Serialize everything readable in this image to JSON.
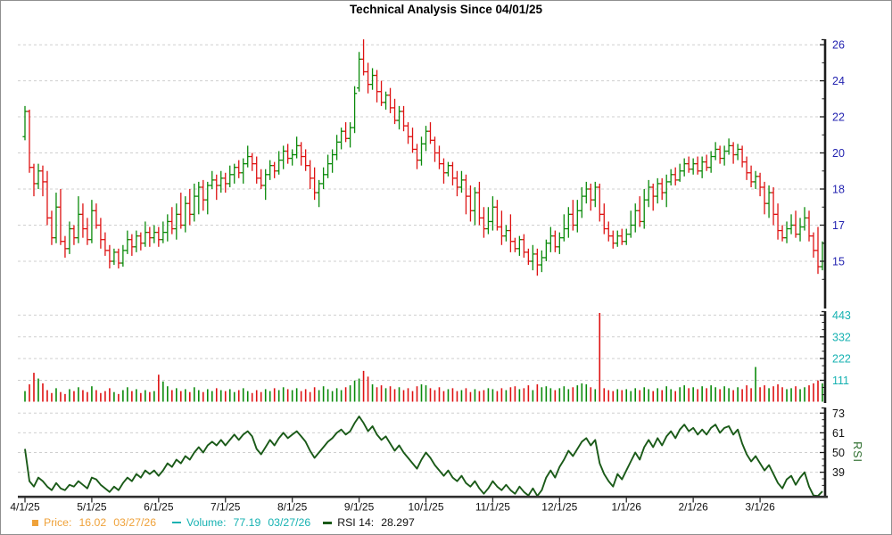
{
  "title": "Technical Analysis Since 04/01/25",
  "legend": {
    "price_label": "Price:",
    "price_value": "16.02",
    "price_date": "03/27/26",
    "volume_label": "Volume:",
    "volume_value": "77.19",
    "volume_date": "03/27/26",
    "rsi_label": "RSI 14:",
    "rsi_value": "28.297"
  },
  "colors": {
    "up_bar": "#0a8a0a",
    "down_bar": "#de1212",
    "grid": "#cfcfcf",
    "axis": "#1c1c1c",
    "x_axis": "#2f2f2f",
    "price_label": "#2323b0",
    "volume_label": "#17b2b2",
    "rsi_line": "#1a5a18",
    "rsi_axis_title": "#2f6f2f",
    "legend_price": "#efa23a",
    "legend_volume": "#17b2b2",
    "legend_rsi_text": "#111111",
    "tick_label": "#111111"
  },
  "chart_data": {
    "type": "bar",
    "subtype": "daily-ohlc-bars-with-volume-and-rsi-panels",
    "title": "Technical Analysis Since 04/01/25",
    "x_tick_labels": [
      "4/1/25",
      "5/1/25",
      "6/1/25",
      "7/1/25",
      "8/1/25",
      "9/1/25",
      "10/1/25",
      "11/1/25",
      "12/1/25",
      "1/1/26",
      "2/1/26",
      "3/1/26"
    ],
    "bars_per_month": 15,
    "price_tick_labels": [
      26,
      24,
      22,
      20,
      18,
      17,
      15
    ],
    "volume_tick_labels": [
      443,
      332,
      222,
      111
    ],
    "rsi_tick_labels": [
      73,
      61,
      50,
      39
    ],
    "rsi_axis_title": "RSI",
    "legend_last": {
      "price": 16.02,
      "price_date": "03/27/26",
      "volume": 77.19,
      "volume_date": "03/27/26",
      "rsi14": 28.297
    },
    "open": [
      20.9,
      22.3,
      19.2,
      18.3,
      19.0,
      18.4,
      17.2,
      16.3,
      17.5,
      16.1,
      15.7,
      16.8,
      16.3,
      17.3,
      16.8,
      16.2,
      17.4,
      17.0,
      16.2,
      15.6,
      15.0,
      15.5,
      14.9,
      15.6,
      16.2,
      15.8,
      16.4,
      16.0,
      16.6,
      16.3,
      16.6,
      16.2,
      16.6,
      17.1,
      16.8,
      17.3,
      17.0,
      17.6,
      17.3,
      17.8,
      18.1,
      17.7,
      18.2,
      18.5,
      18.2,
      18.6,
      18.3,
      18.8,
      19.2,
      18.9,
      19.4,
      19.8,
      19.4,
      18.6,
      18.2,
      18.8,
      19.3,
      19.0,
      19.6,
      20.1,
      19.7,
      19.9,
      20.4,
      19.8,
      19.3,
      18.6,
      17.9,
      18.3,
      18.8,
      19.4,
      19.9,
      20.6,
      21.2,
      20.8,
      21.4,
      23.6,
      25.2,
      24.5,
      23.8,
      24.3,
      23.4,
      22.8,
      23.2,
      22.5,
      21.8,
      22.3,
      21.5,
      20.9,
      20.2,
      19.6,
      20.5,
      21.2,
      20.7,
      20.0,
      19.4,
      18.9,
      19.3,
      18.6,
      18.1,
      18.5,
      17.8,
      17.4,
      17.9,
      17.2,
      16.8,
      17.1,
      17.5,
      16.9,
      16.4,
      16.7,
      16.1,
      15.7,
      16.2,
      15.5,
      15.0,
      15.4,
      14.8,
      15.2,
      16.0,
      16.4,
      15.8,
      16.3,
      16.8,
      17.3,
      17.0,
      17.4,
      17.8,
      18.0,
      17.7,
      18.1,
      17.3,
      16.8,
      16.4,
      16.0,
      16.4,
      16.1,
      16.5,
      17.0,
      17.4,
      17.1,
      17.7,
      18.1,
      17.8,
      18.3,
      17.9,
      18.4,
      18.8,
      18.5,
      19.0,
      19.4,
      19.1,
      19.4,
      19.0,
      19.5,
      19.2,
      19.8,
      20.2,
      19.7,
      20.1,
      20.4,
      19.9,
      20.2,
      19.5,
      18.9,
      18.4,
      18.7,
      18.1,
      17.6,
      17.9,
      17.3,
      16.7,
      16.3,
      16.8,
      17.0,
      16.5,
      16.9,
      17.2,
      16.4,
      15.6,
      14.7
    ],
    "high": [
      22.6,
      22.4,
      19.4,
      19.4,
      19.3,
      19.0,
      17.4,
      17.9,
      18.0,
      16.4,
      17.1,
      17.0,
      17.8,
      17.6,
      17.2,
      17.7,
      17.6,
      17.2,
      16.6,
      15.9,
      15.7,
      15.7,
      15.9,
      16.7,
      16.5,
      16.7,
      16.6,
      17.1,
      16.9,
      17.0,
      16.9,
      17.1,
      17.3,
      17.5,
      17.6,
      17.9,
      17.8,
      18.0,
      18.3,
      18.4,
      18.5,
      18.4,
      19.0,
      18.8,
      19.0,
      18.9,
      19.3,
      19.4,
      19.6,
      19.7,
      20.4,
      20.0,
      19.8,
      19.1,
      19.1,
      19.6,
      19.5,
      20.1,
      20.4,
      20.5,
      20.2,
      20.9,
      20.6,
      20.2,
      19.6,
      19.2,
      18.5,
      19.2,
      19.9,
      20.2,
      21.0,
      21.4,
      21.7,
      21.7,
      23.7,
      25.6,
      26.3,
      25.0,
      24.7,
      24.6,
      24.0,
      23.4,
      23.6,
      23.0,
      22.6,
      22.6,
      21.7,
      21.4,
      20.5,
      20.9,
      21.5,
      21.7,
      20.9,
      20.4,
      19.7,
      19.5,
      19.5,
      19.0,
      19.0,
      18.8,
      18.2,
      18.1,
      18.4,
      17.5,
      17.5,
      17.8,
      17.7,
      17.4,
      17.0,
      17.3,
      16.3,
      16.4,
      16.5,
      15.7,
      15.9,
      15.7,
      15.6,
      16.2,
      16.9,
      16.7,
      16.6,
      17.3,
      17.5,
      17.7,
      17.7,
      18.1,
      18.4,
      18.3,
      18.4,
      18.3,
      17.6,
      17.1,
      16.7,
      16.7,
      16.8,
      16.8,
      17.4,
      17.6,
      17.8,
      18.0,
      18.5,
      18.3,
      18.6,
      18.6,
      18.8,
      19.1,
      19.2,
      19.4,
      19.7,
      19.8,
      19.7,
      19.8,
      19.8,
      19.9,
      20.1,
      20.6,
      20.4,
      20.4,
      20.8,
      20.6,
      20.5,
      20.4,
      19.8,
      19.3,
      19.0,
      18.9,
      18.4,
      18.2,
      18.1,
      17.6,
      17.0,
      17.1,
      17.3,
      17.4,
      17.2,
      17.5,
      17.4,
      16.6,
      16.9,
      16.1
    ],
    "low": [
      20.7,
      18.9,
      17.8,
      18.0,
      17.8,
      17.0,
      15.9,
      16.0,
      15.9,
      15.2,
      15.4,
      15.9,
      16.0,
      16.3,
      15.9,
      16.0,
      16.8,
      15.7,
      15.3,
      14.6,
      14.8,
      14.6,
      14.7,
      15.4,
      15.3,
      15.5,
      15.6,
      15.8,
      15.8,
      16.0,
      15.8,
      16.0,
      16.1,
      16.5,
      16.2,
      16.8,
      16.6,
      17.0,
      17.1,
      17.3,
      17.4,
      17.3,
      18.0,
      17.7,
      17.9,
      17.9,
      18.1,
      18.3,
      18.6,
      18.3,
      19.2,
      19.0,
      18.3,
      18.0,
      17.7,
      18.5,
      18.6,
      18.8,
      19.1,
      19.4,
      19.3,
      19.7,
      19.3,
      19.0,
      18.0,
      17.7,
      17.5,
      18.0,
      18.6,
      18.9,
      19.6,
      20.2,
      20.6,
      20.3,
      21.1,
      23.4,
      24.3,
      23.3,
      23.5,
      22.8,
      22.6,
      22.4,
      22.2,
      21.6,
      21.3,
      21.2,
      20.5,
      20.0,
      19.1,
      19.3,
      20.1,
      20.5,
      19.5,
      19.1,
      18.3,
      18.7,
      18.2,
      17.8,
      17.9,
      17.3,
      17.1,
      17.0,
      17.0,
      16.3,
      16.5,
      16.7,
      16.7,
      15.9,
      16.1,
      15.5,
      15.5,
      15.3,
      15.2,
      14.8,
      14.5,
      14.2,
      14.4,
      15.0,
      15.5,
      15.5,
      15.4,
      16.1,
      16.3,
      16.7,
      16.6,
      17.2,
      17.6,
      17.4,
      17.5,
      17.1,
      16.5,
      16.1,
      15.7,
      15.8,
      15.9,
      15.9,
      16.3,
      16.6,
      16.9,
      16.8,
      17.5,
      17.4,
      17.6,
      17.7,
      17.5,
      18.2,
      18.2,
      18.4,
      18.7,
      18.9,
      18.8,
      18.8,
      18.6,
      19.0,
      18.9,
      19.6,
      19.4,
      19.3,
      19.9,
      19.4,
      19.6,
      19.2,
      18.5,
      18.1,
      18.0,
      17.8,
      17.3,
      17.2,
      17.0,
      16.2,
      16.1,
      16.0,
      16.5,
      16.3,
      16.1,
      16.7,
      16.1,
      15.2,
      14.3,
      14.5
    ],
    "close": [
      22.3,
      19.2,
      18.3,
      19.0,
      18.4,
      17.2,
      16.3,
      17.5,
      16.1,
      15.7,
      16.8,
      16.3,
      17.3,
      16.8,
      16.2,
      17.4,
      17.0,
      16.2,
      15.6,
      15.0,
      15.5,
      14.9,
      15.6,
      16.2,
      15.8,
      16.4,
      16.0,
      16.6,
      16.3,
      16.6,
      16.2,
      16.6,
      17.1,
      16.8,
      17.3,
      17.0,
      17.6,
      17.3,
      17.8,
      18.1,
      17.7,
      18.2,
      18.5,
      18.2,
      18.6,
      18.3,
      18.8,
      19.2,
      18.9,
      19.4,
      19.8,
      19.4,
      18.6,
      18.2,
      18.8,
      19.3,
      19.0,
      19.6,
      20.1,
      19.7,
      19.9,
      20.4,
      19.8,
      19.3,
      18.6,
      17.9,
      18.3,
      18.8,
      19.4,
      19.9,
      20.6,
      21.2,
      20.8,
      21.4,
      23.3,
      25.2,
      24.5,
      23.8,
      24.3,
      23.4,
      22.8,
      23.2,
      22.5,
      21.8,
      22.3,
      21.5,
      20.9,
      20.2,
      19.6,
      20.5,
      21.2,
      20.7,
      20.0,
      19.4,
      18.9,
      19.3,
      18.6,
      18.1,
      18.5,
      17.8,
      17.4,
      17.9,
      17.2,
      16.8,
      17.1,
      17.5,
      16.9,
      16.4,
      16.7,
      16.1,
      15.7,
      16.2,
      15.5,
      15.0,
      15.4,
      14.8,
      15.2,
      16.0,
      16.4,
      15.8,
      16.3,
      16.8,
      17.3,
      17.0,
      17.4,
      17.8,
      18.0,
      17.7,
      18.1,
      17.3,
      16.8,
      16.4,
      16.0,
      16.4,
      16.1,
      16.5,
      17.0,
      17.4,
      17.1,
      17.7,
      18.1,
      17.8,
      18.3,
      17.9,
      18.4,
      18.8,
      18.5,
      19.0,
      19.4,
      19.1,
      19.4,
      19.0,
      19.5,
      19.2,
      19.8,
      20.2,
      19.7,
      20.1,
      20.4,
      19.9,
      20.2,
      19.5,
      18.9,
      18.4,
      18.7,
      18.1,
      17.6,
      17.9,
      17.3,
      16.7,
      16.3,
      16.8,
      17.0,
      16.5,
      16.9,
      17.2,
      16.4,
      15.6,
      14.7,
      16.0
    ],
    "volume": [
      55,
      90,
      150,
      120,
      95,
      60,
      45,
      70,
      50,
      40,
      65,
      55,
      75,
      60,
      50,
      80,
      60,
      45,
      55,
      70,
      50,
      40,
      60,
      75,
      55,
      65,
      45,
      60,
      50,
      55,
      140,
      105,
      80,
      60,
      70,
      55,
      65,
      50,
      75,
      60,
      50,
      65,
      55,
      70,
      60,
      55,
      65,
      50,
      60,
      70,
      55,
      45,
      60,
      50,
      65,
      55,
      70,
      60,
      75,
      65,
      60,
      70,
      55,
      65,
      50,
      75,
      60,
      80,
      65,
      55,
      70,
      60,
      75,
      85,
      110,
      120,
      160,
      130,
      90,
      75,
      85,
      70,
      80,
      65,
      75,
      60,
      70,
      55,
      80,
      90,
      85,
      70,
      60,
      75,
      55,
      65,
      70,
      55,
      60,
      70,
      50,
      65,
      55,
      60,
      70,
      65,
      55,
      70,
      60,
      75,
      80,
      65,
      70,
      85,
      60,
      90,
      75,
      80,
      70,
      60,
      70,
      80,
      65,
      75,
      85,
      95,
      90,
      75,
      65,
      460,
      70,
      60,
      55,
      65,
      60,
      65,
      55,
      70,
      60,
      75,
      65,
      55,
      70,
      60,
      80,
      65,
      55,
      75,
      85,
      70,
      75,
      65,
      80,
      70,
      85,
      75,
      65,
      80,
      70,
      60,
      75,
      65,
      85,
      70,
      180,
      75,
      85,
      70,
      80,
      90,
      75,
      65,
      70,
      80,
      65,
      75,
      85,
      95,
      110,
      95
    ],
    "rsi": [
      52,
      34,
      31,
      36,
      34,
      31,
      29,
      33,
      30,
      29,
      32,
      31,
      34,
      32,
      30,
      36,
      35,
      32,
      30,
      28,
      31,
      29,
      33,
      36,
      34,
      38,
      36,
      40,
      38,
      40,
      37,
      40,
      44,
      42,
      46,
      44,
      48,
      46,
      50,
      53,
      50,
      54,
      56,
      54,
      57,
      54,
      57,
      60,
      57,
      60,
      62,
      59,
      52,
      49,
      53,
      57,
      54,
      58,
      61,
      58,
      60,
      62,
      59,
      56,
      51,
      47,
      50,
      53,
      56,
      58,
      61,
      63,
      60,
      62,
      67,
      71,
      67,
      62,
      65,
      60,
      57,
      59,
      55,
      51,
      54,
      50,
      47,
      44,
      41,
      46,
      50,
      47,
      43,
      40,
      37,
      40,
      36,
      34,
      37,
      33,
      31,
      34,
      30,
      27,
      30,
      34,
      31,
      29,
      32,
      29,
      27,
      31,
      28,
      26,
      30,
      25,
      29,
      36,
      40,
      36,
      42,
      46,
      51,
      48,
      52,
      56,
      58,
      54,
      57,
      44,
      38,
      34,
      31,
      38,
      35,
      40,
      45,
      50,
      46,
      53,
      57,
      53,
      58,
      54,
      59,
      62,
      58,
      63,
      66,
      62,
      64,
      60,
      63,
      60,
      64,
      66,
      61,
      64,
      65,
      60,
      63,
      55,
      49,
      45,
      48,
      44,
      40,
      43,
      38,
      33,
      30,
      35,
      37,
      32,
      36,
      39,
      31,
      26,
      24,
      28.3
    ]
  }
}
